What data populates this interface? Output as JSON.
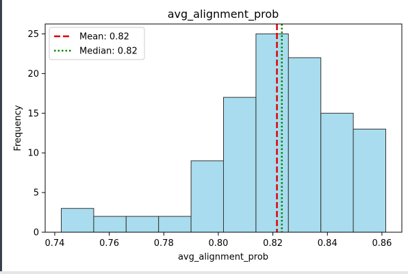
{
  "chart_data": {
    "type": "bar",
    "title": "avg_alignment_prob",
    "xlabel": "avg_alignment_prob",
    "ylabel": "Frequency",
    "bin_edges": [
      0.7424,
      0.7543,
      0.7662,
      0.7781,
      0.79,
      0.8019,
      0.8138,
      0.8257,
      0.8376,
      0.8495,
      0.8614
    ],
    "values": [
      3,
      2,
      2,
      2,
      9,
      17,
      25,
      22,
      15,
      13
    ],
    "xlim": [
      0.7365,
      0.8673
    ],
    "ylim": [
      0,
      26.25
    ],
    "xticks": [
      0.74,
      0.76,
      0.78,
      0.8,
      0.82,
      0.84,
      0.86
    ],
    "xtick_labels": [
      "0.74",
      "0.76",
      "0.78",
      "0.80",
      "0.82",
      "0.84",
      "0.86"
    ],
    "yticks": [
      0,
      5,
      10,
      15,
      20,
      25
    ],
    "ytick_labels": [
      "0",
      "5",
      "10",
      "15",
      "20",
      "25"
    ],
    "bar_color": "#a8dcee",
    "bar_edge_color": "#333333",
    "grid": false,
    "legend_position": "top-left",
    "reference_lines": [
      {
        "label": "Mean: 0.82",
        "value": 0.8215,
        "color": "#e00000",
        "style": "dashed"
      },
      {
        "label": "Median: 0.82",
        "value": 0.8233,
        "color": "#008800",
        "style": "dotted"
      }
    ]
  }
}
